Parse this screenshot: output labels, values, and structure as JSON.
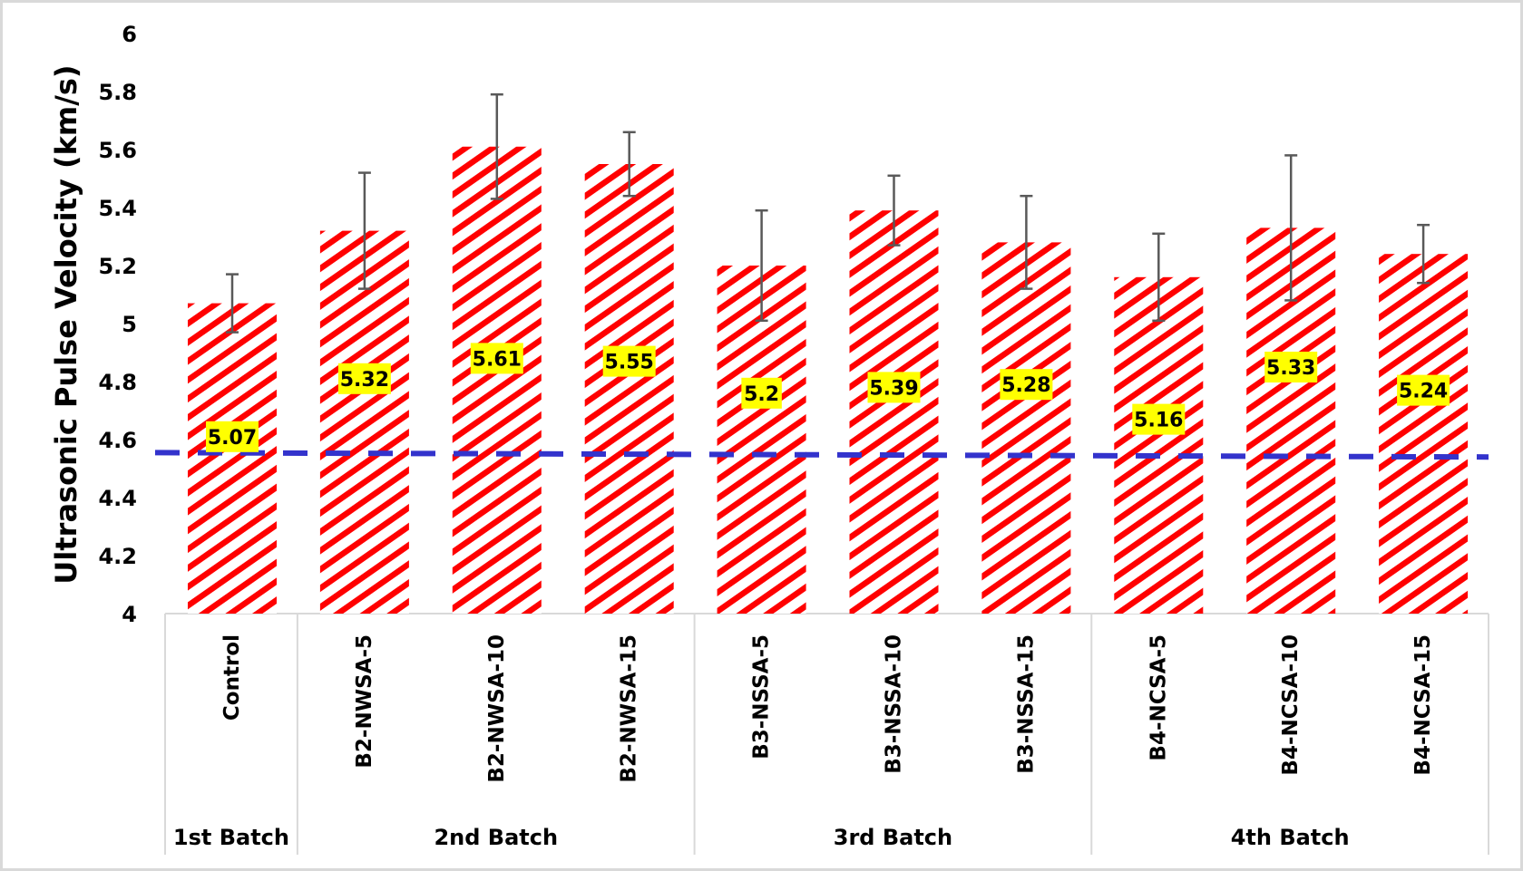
{
  "chart_data": {
    "type": "bar",
    "title": "",
    "xlabel": "",
    "ylabel": "Ultrasonic Pulse Velocity (km/s)",
    "ylim": [
      4,
      6
    ],
    "yticks": [
      "4",
      "4.2",
      "4.4",
      "4.6",
      "4.8",
      "5",
      "5.2",
      "5.4",
      "5.6",
      "5.8",
      "6"
    ],
    "grid": false,
    "legend": null,
    "categories": [
      "Control",
      "B2-NWSA-5",
      "B2-NWSA-10",
      "B2-NWSA-15",
      "B3-NSSA-5",
      "B3-NSSA-10",
      "B3-NSSA-15",
      "B4-NCSA-5",
      "B4-NCSA-10",
      "B4-NCSA-15"
    ],
    "groups": [
      {
        "label": "1st Batch",
        "start": 0,
        "count": 1
      },
      {
        "label": "2nd Batch",
        "start": 1,
        "count": 3
      },
      {
        "label": "3rd Batch",
        "start": 4,
        "count": 3
      },
      {
        "label": "4th Batch",
        "start": 7,
        "count": 3
      }
    ],
    "series": [
      {
        "name": "Ultrasonic Pulse Velocity",
        "values": [
          5.07,
          5.32,
          5.61,
          5.55,
          5.2,
          5.39,
          5.28,
          5.16,
          5.33,
          5.24
        ],
        "data_labels": [
          "5.07",
          "5.32",
          "5.61",
          "5.55",
          "5.2",
          "5.39",
          "5.28",
          "5.16",
          "5.33",
          "5.24"
        ],
        "error": [
          0.1,
          0.2,
          0.18,
          0.11,
          0.19,
          0.12,
          0.16,
          0.15,
          0.25,
          0.1
        ],
        "label_y_value": [
          4.61,
          4.81,
          4.88,
          4.87,
          4.76,
          4.78,
          4.79,
          4.67,
          4.85,
          4.77
        ],
        "fill_pattern": "diagonal-stripes",
        "color": "#ff0000"
      }
    ],
    "reference_line": {
      "style": "dashed",
      "color": "#3333cc",
      "y_start": 4.555,
      "y_end": 4.54,
      "label": ""
    },
    "data_label_background": "#ffff00"
  }
}
